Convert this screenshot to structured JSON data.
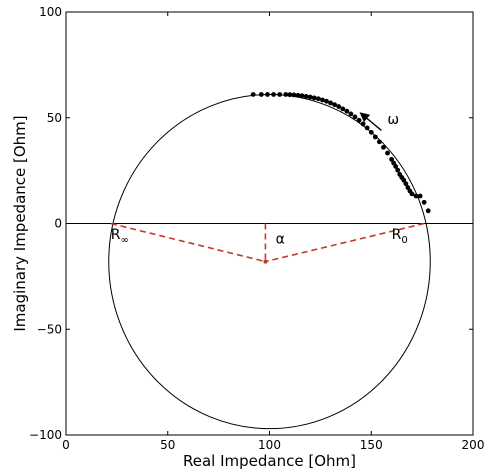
{
  "chart_data": {
    "type": "scatter",
    "title": "",
    "xlabel": "Real Impedance [Ohm]",
    "ylabel": "Imaginary Impedance [Ohm]",
    "xlim": [
      0,
      200
    ],
    "ylim": [
      -100,
      100
    ],
    "x_ticks": [
      0,
      50,
      100,
      150,
      200
    ],
    "y_ticks": [
      -100,
      -50,
      0,
      50,
      100
    ],
    "x_tick_labels": [
      "0",
      "50",
      "100",
      "150",
      "200"
    ],
    "y_tick_labels": [
      "−100",
      "−50",
      "0",
      "50",
      "100"
    ],
    "grid": false,
    "zero_line_y": 0,
    "fitted_circle": {
      "center": [
        100,
        -18
      ],
      "radius": 79
    },
    "constructions": {
      "r_inf_point": [
        22,
        0
      ],
      "r0_point": [
        176,
        0
      ],
      "center_point": [
        98,
        -18
      ],
      "line_color": "#c0392b"
    },
    "annotations": {
      "r_inf": {
        "main": "R",
        "sub": "∞",
        "at": [
          22,
          -5
        ]
      },
      "r0": {
        "main": "R",
        "sub": "0",
        "at": [
          160,
          -5
        ]
      },
      "alpha": {
        "text": "α",
        "at": [
          103,
          -7
        ]
      },
      "omega": {
        "text": "ω",
        "at": [
          154,
          50
        ],
        "arrow_from": [
          155,
          44
        ],
        "arrow_to": [
          145,
          52
        ]
      }
    },
    "series": [
      {
        "marker": "dot",
        "color": "#000000",
        "points": [
          [
            92,
            61
          ],
          [
            96,
            61
          ],
          [
            99,
            61
          ],
          [
            102,
            61
          ],
          [
            105,
            61
          ],
          [
            108,
            61
          ],
          [
            110,
            60.9
          ],
          [
            112,
            60.8
          ],
          [
            114,
            60.6
          ],
          [
            116,
            60.4
          ],
          [
            118,
            60.1
          ],
          [
            120,
            59.8
          ],
          [
            122,
            59.4
          ],
          [
            124,
            59.0
          ],
          [
            126,
            58.4
          ],
          [
            128,
            57.8
          ],
          [
            130,
            57.0
          ],
          [
            132,
            56.2
          ],
          [
            134,
            55.3
          ],
          [
            136,
            54.2
          ],
          [
            138,
            53.1
          ],
          [
            140,
            51.8
          ],
          [
            142,
            50.4
          ],
          [
            144,
            48.8
          ],
          [
            146,
            47.1
          ],
          [
            148,
            45.2
          ],
          [
            150,
            43.1
          ],
          [
            152,
            40.9
          ],
          [
            154,
            38.6
          ],
          [
            156,
            36.0
          ],
          [
            158,
            33.3
          ],
          [
            160,
            30.3
          ],
          [
            161,
            28.6
          ],
          [
            162,
            27.0
          ],
          [
            163,
            25.2
          ],
          [
            164,
            23.2
          ],
          [
            165,
            21.8
          ],
          [
            166,
            20.5
          ],
          [
            167,
            18.8
          ],
          [
            168,
            17.0
          ],
          [
            169,
            15.4
          ],
          [
            170,
            14.0
          ],
          [
            172,
            13.0
          ],
          [
            174,
            13.0
          ],
          [
            176,
            10.0
          ],
          [
            178,
            6.0
          ]
        ]
      }
    ]
  }
}
